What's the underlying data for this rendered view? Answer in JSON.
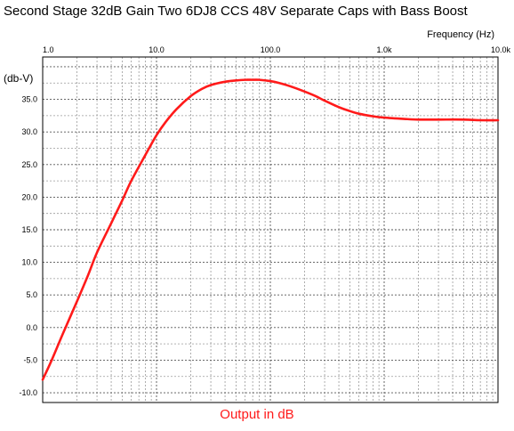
{
  "chart_data": {
    "type": "line",
    "title": "Second Stage 32dB Gain Two 6DJ8 CCS 48V Separate Caps with Bass Boost",
    "xlabel": "Frequency  (Hz)",
    "ylabel": "(db-V)",
    "x_scale": "log",
    "xlim": [
      1,
      10000
    ],
    "ylim": [
      -11.5,
      41.5
    ],
    "x_ticks": [
      {
        "value": 1,
        "label": "1.0"
      },
      {
        "value": 10,
        "label": "10.0"
      },
      {
        "value": 100,
        "label": "100.0"
      },
      {
        "value": 1000,
        "label": "1.0k"
      },
      {
        "value": 10000,
        "label": "10.0k"
      }
    ],
    "y_ticks": [
      {
        "value": 35,
        "label": "35.0"
      },
      {
        "value": 30,
        "label": "30.0"
      },
      {
        "value": 25,
        "label": "25.0"
      },
      {
        "value": 20,
        "label": "20.0"
      },
      {
        "value": 15,
        "label": "15.0"
      },
      {
        "value": 10,
        "label": "10.0"
      },
      {
        "value": 5,
        "label": "5.0"
      },
      {
        "value": 0,
        "label": "0.0"
      },
      {
        "value": -5,
        "label": "-5.0"
      },
      {
        "value": -10,
        "label": "-10.0"
      }
    ],
    "grid": true,
    "legend_position": "bottom-center",
    "series": [
      {
        "name": "Output in dB",
        "color": "#ff1a1a",
        "x": [
          1,
          1.2,
          1.5,
          2,
          2.5,
          3,
          4,
          5,
          6,
          8,
          10,
          12,
          15,
          20,
          25,
          30,
          40,
          50,
          60,
          70,
          80,
          100,
          120,
          150,
          200,
          250,
          300,
          400,
          500,
          600,
          800,
          1000,
          1500,
          2000,
          3000,
          5000,
          7000,
          10000
        ],
        "y": [
          -8,
          -5,
          -1,
          4,
          8,
          11.5,
          16,
          19.5,
          22.5,
          26.5,
          29.5,
          31.5,
          33.5,
          35.5,
          36.6,
          37.2,
          37.7,
          37.9,
          38,
          38,
          38,
          37.8,
          37.5,
          37,
          36.2,
          35.5,
          34.8,
          33.8,
          33.2,
          32.8,
          32.4,
          32.2,
          32,
          31.9,
          31.9,
          31.9,
          31.8,
          31.8
        ]
      }
    ]
  }
}
